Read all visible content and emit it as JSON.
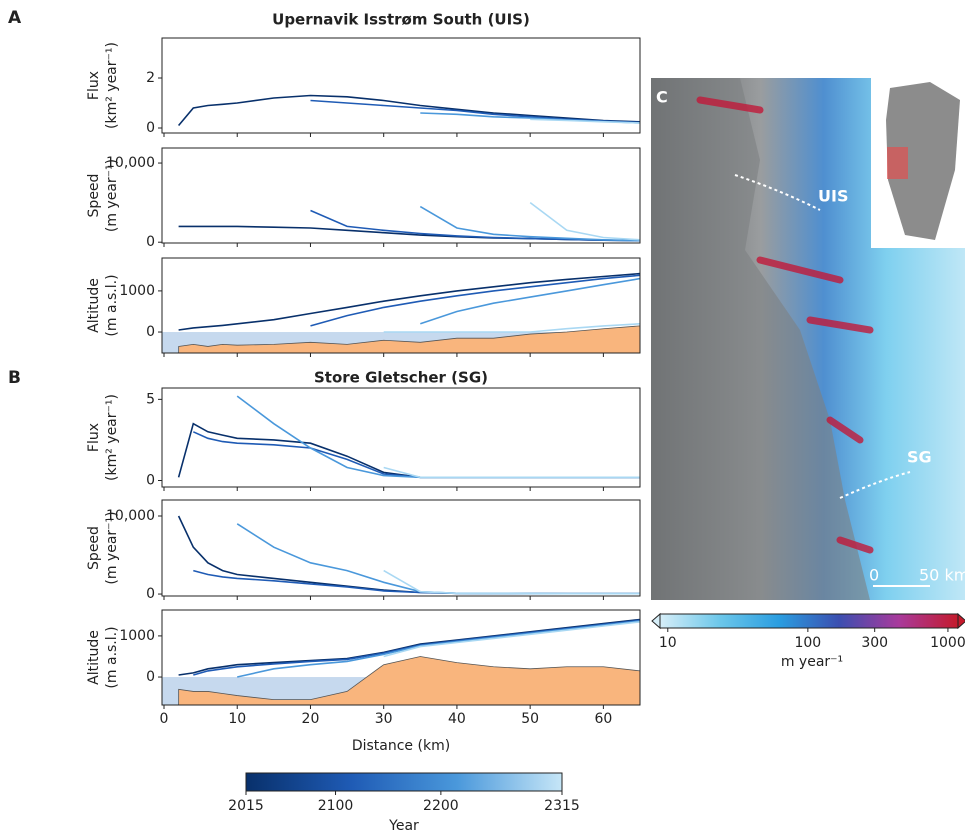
{
  "panels": [
    {
      "letter": "A",
      "title": "Upernavik Isstrøm South (UIS)"
    },
    {
      "letter": "B",
      "title": "Store Gletscher (SG)"
    }
  ],
  "chart_data": [
    {
      "type": "line",
      "ylabel": [
        "Flux",
        "(km² year⁻¹)"
      ],
      "x": [
        2,
        4,
        6,
        8,
        10,
        15,
        20,
        25,
        30,
        35,
        40,
        45,
        50,
        55,
        60,
        65
      ],
      "xlim": [
        0,
        65
      ],
      "xticks": [
        0,
        10,
        20,
        30,
        40,
        50,
        60
      ],
      "ylim": [
        -0.2,
        3.6
      ],
      "yticks": [
        0,
        2
      ],
      "series": [
        {
          "color": "#08306b",
          "values": [
            0.1,
            0.8,
            0.9,
            0.95,
            1.0,
            1.2,
            1.3,
            1.25,
            1.1,
            0.9,
            0.75,
            0.6,
            0.5,
            0.4,
            0.3,
            0.25
          ]
        },
        {
          "color": "#1f5bb5",
          "values": [
            null,
            null,
            null,
            null,
            null,
            null,
            1.1,
            1.0,
            0.9,
            0.8,
            0.7,
            0.55,
            0.45,
            0.35,
            0.28,
            0.22
          ]
        },
        {
          "color": "#4a98db",
          "values": [
            null,
            null,
            null,
            null,
            null,
            null,
            null,
            null,
            null,
            0.6,
            0.55,
            0.45,
            0.4,
            0.32,
            0.26,
            0.2
          ]
        },
        {
          "color": "#a9d8f3",
          "values": [
            null,
            null,
            null,
            null,
            null,
            null,
            null,
            null,
            null,
            null,
            null,
            null,
            0.35,
            0.3,
            0.25,
            0.2
          ]
        }
      ]
    },
    {
      "type": "line",
      "ylabel": [
        "Speed",
        "(m year⁻¹)"
      ],
      "x": [
        2,
        4,
        6,
        8,
        10,
        15,
        20,
        25,
        30,
        35,
        40,
        45,
        50,
        55,
        60,
        65
      ],
      "xlim": [
        0,
        65
      ],
      "xticks": [
        0,
        10,
        20,
        30,
        40,
        50,
        60
      ],
      "ylim": [
        -100,
        11900
      ],
      "yticks": [
        0,
        {
          "value": 10000,
          "label": "10,000"
        }
      ],
      "series": [
        {
          "color": "#08306b",
          "values": [
            2000,
            2000,
            2000,
            2000,
            2000,
            1900,
            1800,
            1500,
            1200,
            900,
            700,
            550,
            450,
            350,
            250,
            200
          ]
        },
        {
          "color": "#1f5bb5",
          "values": [
            null,
            null,
            null,
            null,
            null,
            null,
            4000,
            2000,
            1500,
            1100,
            800,
            600,
            450,
            350,
            250,
            200
          ]
        },
        {
          "color": "#4a98db",
          "values": [
            null,
            null,
            null,
            null,
            null,
            null,
            null,
            null,
            null,
            4500,
            1800,
            1000,
            700,
            500,
            300,
            200
          ]
        },
        {
          "color": "#a9d8f3",
          "values": [
            null,
            null,
            null,
            null,
            null,
            null,
            null,
            null,
            null,
            null,
            null,
            null,
            5000,
            1500,
            600,
            300
          ]
        }
      ]
    },
    {
      "type": "line",
      "ylabel": [
        "Altitude",
        "(m a.s.l.)"
      ],
      "x": [
        2,
        4,
        6,
        8,
        10,
        15,
        20,
        25,
        30,
        35,
        40,
        45,
        50,
        55,
        60,
        65
      ],
      "xlim": [
        0,
        65
      ],
      "xticks": [
        0,
        10,
        20,
        30,
        40,
        50,
        60
      ],
      "ylim": [
        -510,
        1800
      ],
      "yticks": [
        0,
        1000
      ],
      "sea_color": "#c6d9ee",
      "bed": {
        "color": "#f9b57d",
        "values": [
          -350,
          -300,
          -350,
          -300,
          -320,
          -300,
          -250,
          -300,
          -200,
          -250,
          -150,
          -150,
          -50,
          0,
          80,
          150
        ]
      },
      "series": [
        {
          "color": "#08306b",
          "values": [
            50,
            100,
            130,
            160,
            200,
            300,
            450,
            600,
            750,
            880,
            1000,
            1100,
            1200,
            1280,
            1350,
            1420
          ]
        },
        {
          "color": "#1f5bb5",
          "values": [
            null,
            null,
            null,
            null,
            null,
            null,
            150,
            400,
            600,
            750,
            880,
            1000,
            1100,
            1200,
            1300,
            1380
          ]
        },
        {
          "color": "#4a98db",
          "values": [
            null,
            null,
            null,
            null,
            null,
            null,
            null,
            null,
            null,
            200,
            500,
            700,
            850,
            1000,
            1150,
            1300
          ]
        },
        {
          "color": "#a9d8f3",
          "values": [
            null,
            null,
            null,
            null,
            null,
            null,
            null,
            null,
            0,
            0,
            0,
            0,
            0,
            80,
            150,
            200
          ]
        }
      ]
    },
    {
      "type": "line",
      "ylabel": [
        "Flux",
        "(km² year⁻¹)"
      ],
      "x": [
        2,
        4,
        6,
        8,
        10,
        15,
        20,
        25,
        30,
        35,
        40,
        45,
        50,
        55,
        60,
        65
      ],
      "xlim": [
        0,
        65
      ],
      "xticks": [
        0,
        10,
        20,
        30,
        40,
        50,
        60
      ],
      "ylim": [
        -0.4,
        5.7
      ],
      "yticks": [
        0,
        5
      ],
      "series": [
        {
          "color": "#08306b",
          "values": [
            0.2,
            3.5,
            3.0,
            2.8,
            2.6,
            2.5,
            2.3,
            1.5,
            0.5,
            0.2,
            0.2,
            0.2,
            0.2,
            0.2,
            0.2,
            0.2
          ]
        },
        {
          "color": "#1f5bb5",
          "values": [
            null,
            3.0,
            2.6,
            2.4,
            2.3,
            2.2,
            2.0,
            1.3,
            0.4,
            0.2,
            0.2,
            0.2,
            0.2,
            0.2,
            0.2,
            0.2
          ]
        },
        {
          "color": "#4a98db",
          "values": [
            null,
            null,
            null,
            null,
            5.2,
            3.5,
            2.0,
            0.8,
            0.3,
            0.2,
            0.2,
            0.2,
            0.2,
            0.2,
            0.2,
            0.2
          ]
        },
        {
          "color": "#a9d8f3",
          "values": [
            null,
            null,
            null,
            null,
            null,
            null,
            null,
            null,
            0.8,
            0.2,
            0.2,
            0.2,
            0.2,
            0.2,
            0.2,
            0.2
          ]
        }
      ]
    },
    {
      "type": "line",
      "ylabel": [
        "Speed",
        "(m year⁻¹)"
      ],
      "x": [
        2,
        4,
        6,
        8,
        10,
        15,
        20,
        25,
        30,
        35,
        40,
        45,
        50,
        55,
        60,
        65
      ],
      "xlim": [
        0,
        65
      ],
      "xticks": [
        0,
        10,
        20,
        30,
        40,
        50,
        60
      ],
      "ylim": [
        -250,
        12050
      ],
      "yticks": [
        0,
        {
          "value": 10000,
          "label": "10,000"
        }
      ],
      "series": [
        {
          "color": "#08306b",
          "values": [
            10000,
            6000,
            4000,
            3000,
            2500,
            2000,
            1500,
            1000,
            500,
            200,
            100,
            80,
            60,
            50,
            50,
            50
          ]
        },
        {
          "color": "#1f5bb5",
          "values": [
            null,
            3000,
            2500,
            2200,
            2000,
            1700,
            1300,
            900,
            400,
            200,
            100,
            80,
            60,
            50,
            50,
            50
          ]
        },
        {
          "color": "#4a98db",
          "values": [
            null,
            null,
            null,
            null,
            9000,
            6000,
            4000,
            3000,
            1500,
            300,
            100,
            80,
            60,
            50,
            50,
            50
          ]
        },
        {
          "color": "#a9d8f3",
          "values": [
            null,
            null,
            null,
            null,
            null,
            null,
            null,
            null,
            3000,
            300,
            100,
            80,
            60,
            50,
            50,
            50
          ]
        }
      ]
    },
    {
      "type": "line",
      "ylabel": [
        "Altitude",
        "(m a.s.l.)"
      ],
      "xlabel": "Distance (km)",
      "x": [
        2,
        4,
        6,
        8,
        10,
        15,
        20,
        25,
        30,
        35,
        40,
        45,
        50,
        55,
        60,
        65
      ],
      "xlim": [
        0,
        65
      ],
      "xticks": [
        0,
        10,
        20,
        30,
        40,
        50,
        60
      ],
      "ylim": [
        -680,
        1630
      ],
      "yticks": [
        0,
        1000
      ],
      "sea_color": "#c6d9ee",
      "bed": {
        "color": "#f9b57d",
        "values": [
          -300,
          -350,
          -350,
          -400,
          -450,
          -550,
          -550,
          -350,
          300,
          500,
          350,
          250,
          200,
          250,
          250,
          150
        ]
      },
      "series": [
        {
          "color": "#08306b",
          "values": [
            50,
            100,
            200,
            250,
            300,
            350,
            400,
            450,
            600,
            800,
            900,
            1000,
            1100,
            1200,
            1300,
            1400
          ]
        },
        {
          "color": "#1f5bb5",
          "values": [
            null,
            50,
            150,
            200,
            250,
            320,
            380,
            430,
            580,
            780,
            880,
            980,
            1080,
            1180,
            1280,
            1380
          ]
        },
        {
          "color": "#4a98db",
          "values": [
            null,
            null,
            null,
            null,
            0,
            200,
            300,
            380,
            550,
            760,
            860,
            960,
            1060,
            1160,
            1260,
            1360
          ]
        },
        {
          "color": "#a9d8f3",
          "values": [
            null,
            null,
            null,
            null,
            null,
            null,
            null,
            null,
            500,
            740,
            840,
            940,
            1040,
            1140,
            1240,
            1340
          ]
        }
      ]
    },
    {
      "type": "colorbar",
      "label": "Year",
      "lim": [
        2015,
        2315
      ],
      "ticks": [
        2015,
        2100,
        2200,
        2315
      ],
      "colors": [
        "#08306b",
        "#1f5bb5",
        "#4a98db",
        "#c6e6f7"
      ]
    },
    {
      "type": "colorbar",
      "label": "m year⁻¹",
      "scale": "log",
      "lim": [
        8.8,
        1180
      ],
      "ticks": [
        10,
        100,
        300,
        1000
      ],
      "colors": [
        "#d6eef8",
        "#6cc7ea",
        "#2a9de0",
        "#3b4fb0",
        "#a83a9c",
        "#c41a2c"
      ],
      "extend": "both"
    }
  ],
  "map": {
    "letter": "C",
    "labels": [
      "UIS",
      "SG"
    ],
    "scale": [
      "0",
      "50 km"
    ]
  }
}
